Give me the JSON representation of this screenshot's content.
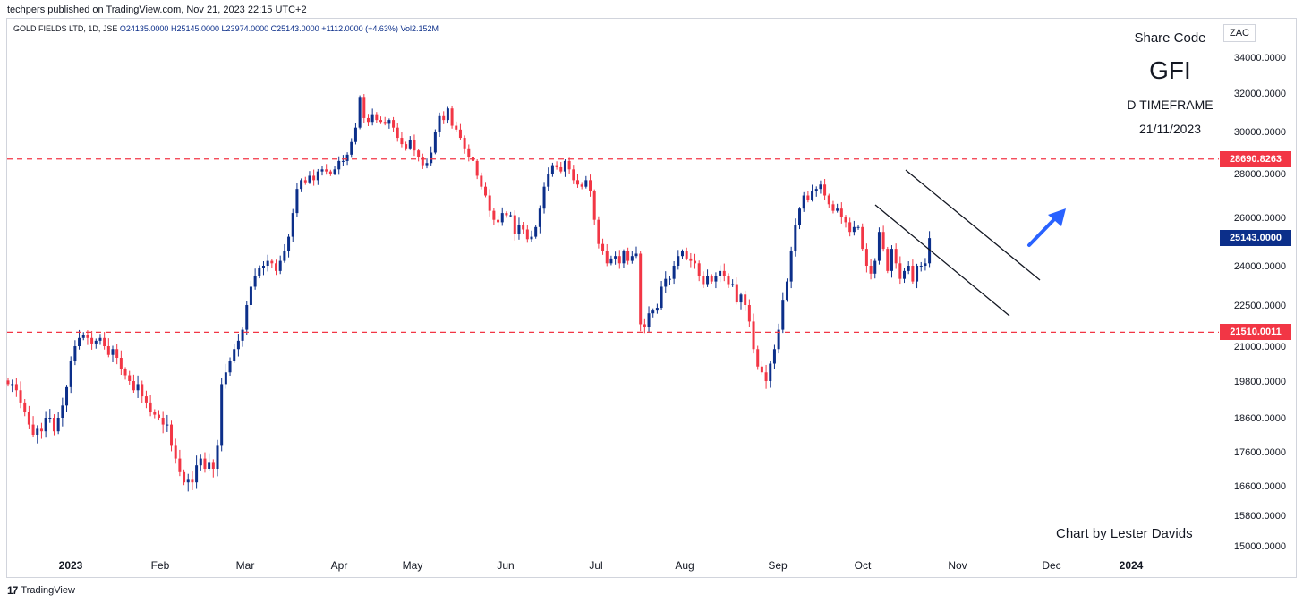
{
  "header": {
    "published": "techpers published on TradingView.com, Nov 21, 2023 22:15 UTC+2",
    "symbol": "GOLD FIELDS LTD, 1D, JSE",
    "open": "O24135.0000",
    "high": "H25145.0000",
    "low": "L23974.0000",
    "close": "C25143.0000",
    "change": "+1112.0000 (+4.63%)",
    "vol": "Vol2.152M"
  },
  "currency": "ZAC",
  "overlay": {
    "label": "Share Code",
    "code": "GFI",
    "timeframe": "D TIMEFRAME",
    "date": "21/11/2023",
    "credit": "Chart by Lester Davids"
  },
  "footer": {
    "brand": "TradingView",
    "logo": "17"
  },
  "colors": {
    "up": "#0c2f8a",
    "down": "#f23645",
    "level": "#f23645",
    "last": "#0c2f8a",
    "arrow": "#2962ff"
  },
  "chart_data": {
    "type": "candlestick",
    "x_ticks": [
      "2023",
      "Feb",
      "Mar",
      "Apr",
      "May",
      "Jun",
      "Jul",
      "Aug",
      "Sep",
      "Oct",
      "Nov",
      "Dec",
      "2024"
    ],
    "y_ticks": [
      "34000.0000",
      "32000.0000",
      "30000.0000",
      "28000.0000",
      "26000.0000",
      "24000.0000",
      "22500.0000",
      "21000.0000",
      "19800.0000",
      "18600.0000",
      "17600.0000",
      "16600.0000",
      "15800.0000",
      "15000.0000"
    ],
    "ylim": [
      15000,
      34500
    ],
    "levels": [
      {
        "price": 28690.8263,
        "label": "28690.8263"
      },
      {
        "price": 21510.0011,
        "label": "21510.0011"
      }
    ],
    "last_price": {
      "price": 25143,
      "label": "25143.0000"
    },
    "grid": false,
    "closes": [
      19700,
      19700,
      19500,
      19100,
      18800,
      18400,
      18100,
      18300,
      18200,
      18600,
      18600,
      18200,
      18600,
      19000,
      19600,
      20500,
      21000,
      21300,
      21400,
      21300,
      21100,
      21200,
      21300,
      21000,
      20700,
      20900,
      20600,
      20200,
      20000,
      19800,
      19500,
      19700,
      19300,
      19100,
      18800,
      18700,
      18600,
      18400,
      18400,
      17800,
      17400,
      17000,
      16700,
      16800,
      16700,
      17200,
      17400,
      17100,
      17300,
      17100,
      17800,
      19700,
      20100,
      20500,
      20900,
      21200,
      21600,
      22500,
      23200,
      23600,
      23900,
      24000,
      24200,
      24100,
      23800,
      24200,
      24600,
      25200,
      26200,
      27300,
      27700,
      27600,
      27900,
      27700,
      28100,
      28200,
      28100,
      28000,
      28200,
      28600,
      28600,
      28900,
      29500,
      30200,
      31800,
      30700,
      30500,
      30900,
      30600,
      30500,
      30400,
      30600,
      30200,
      29700,
      29400,
      29200,
      29600,
      29100,
      28800,
      28400,
      28500,
      29000,
      30000,
      30800,
      30600,
      31200,
      30300,
      30100,
      29700,
      29200,
      28800,
      28600,
      27900,
      27400,
      27000,
      26300,
      25900,
      25800,
      26200,
      26100,
      26100,
      25300,
      25700,
      25500,
      25100,
      25200,
      25600,
      26400,
      27400,
      28000,
      28400,
      28300,
      28100,
      28600,
      28200,
      27700,
      27500,
      27400,
      27700,
      27200,
      25900,
      24900,
      24600,
      24100,
      24300,
      24400,
      24100,
      24600,
      24200,
      24400,
      24500,
      21800,
      21700,
      22200,
      22300,
      22400,
      23200,
      23500,
      23500,
      24000,
      24400,
      24600,
      24300,
      24200,
      24100,
      23600,
      23300,
      23600,
      23400,
      23600,
      23800,
      23600,
      23300,
      23300,
      22600,
      22900,
      22500,
      21900,
      20900,
      20300,
      20100,
      19800,
      20400,
      20900,
      21600,
      22700,
      23400,
      24600,
      25700,
      26400,
      27000,
      26800,
      27200,
      27300,
      27500,
      27000,
      26600,
      26300,
      26400,
      26000,
      25800,
      25400,
      25600,
      25600,
      24700,
      24000,
      23700,
      24200,
      25400,
      24700,
      23800,
      24700,
      24100,
      23500,
      23800,
      24000,
      23400,
      24000,
      24000,
      24100,
      25143
    ]
  }
}
